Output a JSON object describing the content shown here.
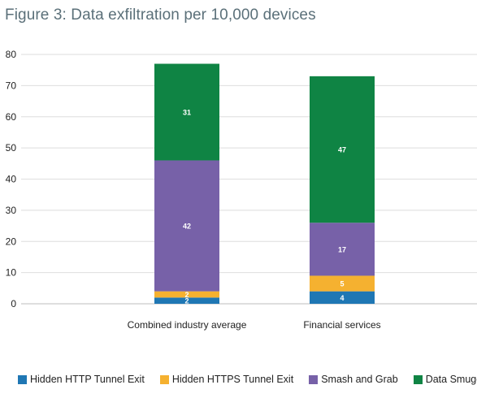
{
  "chart_data": {
    "type": "bar",
    "stacked": true,
    "title": "Figure 3: Data exfiltration per 10,000 devices",
    "xlabel": "",
    "ylabel": "",
    "ylim": [
      0,
      80
    ],
    "yticks": [
      0,
      10,
      20,
      30,
      40,
      50,
      60,
      70,
      80
    ],
    "grid": true,
    "legend_position": "bottom",
    "categories": [
      "Combined industry average",
      "Financial services"
    ],
    "series": [
      {
        "name": "Hidden HTTP Tunnel Exit",
        "color": "#1f77b4",
        "values": [
          2,
          4
        ],
        "labels": [
          "2",
          "4"
        ]
      },
      {
        "name": "Hidden HTTPS Tunnel Exit",
        "color": "#f5b130",
        "values": [
          2,
          5
        ],
        "labels": [
          "2",
          "5"
        ]
      },
      {
        "name": "Smash and Grab",
        "color": "#7761a8",
        "values": [
          42,
          17
        ],
        "labels": [
          "42",
          "17"
        ]
      },
      {
        "name": "Data Smuggler",
        "color": "#0f8444",
        "values": [
          31,
          47
        ],
        "labels": [
          "31",
          "47"
        ]
      }
    ]
  }
}
